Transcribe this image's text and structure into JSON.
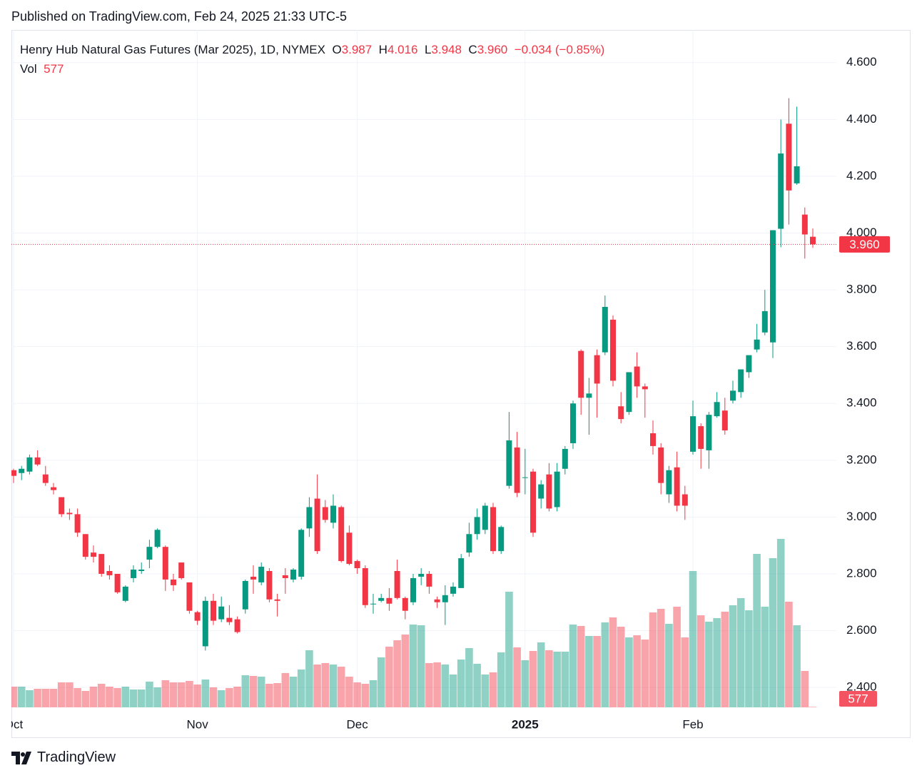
{
  "published": "Published on TradingView.com, Feb 24, 2025 21:33 UTC-5",
  "footer": {
    "brand": "TradingView"
  },
  "chart_data": {
    "type": "candlestick",
    "title": "Henry Hub Natural Gas Futures (Mar 2025), 1D, NYMEX",
    "legend": {
      "open_label": "O",
      "open": "3.987",
      "high_label": "H",
      "high": "4.016",
      "low_label": "L",
      "low": "3.948",
      "close_label": "C",
      "close": "3.960",
      "change": "−0.034 (−0.85%)",
      "volume_label": "Vol"
    },
    "categories": [
      "Oct",
      null,
      null,
      null,
      null,
      null,
      null,
      null,
      null,
      null,
      null,
      null,
      null,
      null,
      null,
      null,
      null,
      null,
      null,
      null,
      null,
      null,
      null,
      "Nov",
      null,
      null,
      null,
      null,
      null,
      null,
      null,
      null,
      null,
      null,
      null,
      null,
      null,
      null,
      null,
      null,
      null,
      null,
      null,
      "Dec",
      null,
      null,
      null,
      null,
      null,
      null,
      null,
      null,
      null,
      null,
      null,
      null,
      null,
      null,
      null,
      null,
      null,
      null,
      null,
      null,
      "2025",
      null,
      null,
      null,
      null,
      null,
      null,
      null,
      null,
      null,
      null,
      null,
      null,
      null,
      null,
      null,
      null,
      null,
      null,
      null,
      null,
      "Feb",
      null,
      null,
      null,
      null,
      null,
      null,
      null,
      null,
      null,
      null,
      null,
      null,
      null,
      null,
      null
    ],
    "open": [
      3.165,
      3.155,
      3.16,
      3.21,
      3.15,
      3.105,
      3.07,
      3.015,
      3.01,
      2.94,
      2.875,
      2.87,
      2.81,
      2.8,
      2.705,
      2.785,
      2.81,
      2.85,
      2.895,
      2.895,
      2.78,
      2.84,
      2.77,
      2.665,
      2.545,
      2.705,
      2.64,
      2.645,
      2.64,
      2.675,
      2.79,
      2.77,
      2.81,
      2.71,
      2.795,
      2.78,
      2.79,
      2.96,
      3.065,
      3.035,
      2.98,
      3.035,
      2.945,
      2.845,
      2.82,
      2.695,
      2.705,
      2.715,
      2.81,
      2.715,
      2.7,
      2.79,
      2.8,
      2.71,
      2.7,
      2.73,
      2.75,
      2.875,
      2.94,
      2.955,
      3.035,
      2.88,
      3.11,
      3.245,
      3.14,
      3.16,
      3.065,
      3.15,
      3.035,
      3.17,
      3.26,
      3.585,
      3.42,
      3.57,
      3.58,
      3.695,
      3.39,
      3.37,
      3.53,
      3.46,
      3.295,
      3.245,
      3.08,
      3.175,
      3.08,
      3.23,
      3.32,
      3.235,
      3.355,
      3.375,
      3.41,
      3.44,
      3.51,
      3.59,
      3.65,
      3.615,
      4.015,
      4.385,
      4.175,
      4.065,
      3.987
    ],
    "high": [
      3.17,
      3.18,
      3.22,
      3.235,
      3.18,
      3.12,
      3.07,
      3.03,
      3.03,
      2.94,
      2.9,
      2.87,
      2.83,
      2.8,
      2.76,
      2.83,
      2.84,
      2.92,
      2.96,
      2.9,
      2.8,
      2.84,
      2.77,
      2.67,
      2.72,
      2.73,
      2.72,
      2.69,
      2.65,
      2.78,
      2.83,
      2.84,
      2.82,
      2.73,
      2.82,
      2.82,
      2.96,
      3.07,
      3.15,
      3.06,
      3.08,
      3.04,
      2.97,
      2.85,
      2.83,
      2.73,
      2.73,
      2.75,
      2.85,
      2.72,
      2.8,
      2.82,
      2.81,
      2.72,
      2.76,
      2.77,
      2.87,
      2.98,
      3.03,
      3.05,
      3.05,
      2.97,
      3.37,
      3.3,
      3.24,
      3.17,
      3.13,
      3.19,
      3.19,
      3.25,
      3.41,
      3.59,
      3.49,
      3.59,
      3.78,
      3.71,
      3.44,
      3.51,
      3.58,
      3.47,
      3.34,
      3.26,
      3.18,
      3.23,
      3.11,
      3.41,
      3.33,
      3.37,
      3.44,
      3.42,
      3.48,
      3.52,
      3.57,
      3.68,
      3.8,
      4.01,
      4.4,
      4.475,
      4.445,
      4.09,
      4.016
    ],
    "low": [
      3.12,
      3.13,
      3.15,
      3.18,
      3.11,
      3.08,
      3.0,
      2.99,
      2.93,
      2.85,
      2.84,
      2.79,
      2.78,
      2.73,
      2.7,
      2.77,
      2.8,
      2.82,
      2.89,
      2.74,
      2.74,
      2.78,
      2.66,
      2.62,
      2.53,
      2.62,
      2.63,
      2.62,
      2.59,
      2.66,
      2.73,
      2.76,
      2.7,
      2.65,
      2.73,
      2.77,
      2.78,
      2.93,
      2.87,
      2.98,
      2.96,
      2.84,
      2.83,
      2.8,
      2.68,
      2.66,
      2.7,
      2.67,
      2.71,
      2.64,
      2.69,
      2.76,
      2.73,
      2.68,
      2.62,
      2.72,
      2.75,
      2.86,
      2.92,
      2.94,
      2.87,
      2.87,
      3.1,
      3.07,
      3.08,
      2.93,
      3.03,
      3.02,
      3.02,
      3.15,
      3.24,
      3.36,
      3.29,
      3.35,
      3.57,
      3.46,
      3.33,
      3.36,
      3.42,
      3.35,
      3.22,
      3.08,
      3.05,
      3.02,
      2.99,
      3.22,
      3.17,
      3.17,
      3.35,
      3.29,
      3.4,
      3.42,
      3.49,
      3.58,
      3.64,
      3.56,
      3.95,
      4.03,
      4.17,
      3.91,
      3.948
    ],
    "close": [
      3.145,
      3.17,
      3.21,
      3.185,
      3.12,
      3.095,
      3.01,
      3.01,
      2.945,
      2.86,
      2.86,
      2.8,
      2.795,
      2.735,
      2.755,
      2.815,
      2.815,
      2.895,
      2.955,
      2.78,
      2.76,
      2.785,
      2.67,
      2.635,
      2.705,
      2.635,
      2.685,
      2.63,
      2.595,
      2.775,
      2.78,
      2.825,
      2.71,
      2.705,
      2.785,
      2.815,
      2.955,
      3.035,
      2.88,
      2.99,
      3.04,
      2.845,
      2.835,
      2.82,
      2.69,
      2.695,
      2.715,
      2.695,
      2.715,
      2.67,
      2.785,
      2.8,
      2.755,
      2.7,
      2.725,
      2.755,
      2.855,
      2.94,
      3.0,
      3.04,
      2.88,
      2.965,
      3.27,
      3.085,
      3.14,
      2.945,
      3.115,
      3.03,
      3.16,
      3.24,
      3.4,
      3.42,
      3.435,
      3.47,
      3.74,
      3.48,
      3.345,
      3.51,
      3.46,
      3.45,
      3.25,
      3.12,
      3.165,
      3.04,
      3.04,
      3.355,
      3.24,
      3.36,
      3.405,
      3.305,
      3.445,
      3.52,
      3.57,
      3.625,
      3.725,
      4.01,
      4.28,
      4.15,
      4.235,
      3.995,
      3.96
    ],
    "volume": [
      23200,
      23200,
      19200,
      20800,
      20800,
      20800,
      28000,
      28000,
      21600,
      18400,
      23200,
      26400,
      23200,
      21600,
      23200,
      20000,
      20000,
      28800,
      22400,
      30400,
      28000,
      28000,
      29600,
      25600,
      31200,
      22400,
      19200,
      21600,
      23200,
      36000,
      35200,
      34400,
      26400,
      27200,
      38400,
      34400,
      42400,
      64000,
      48000,
      49600,
      48000,
      45600,
      34400,
      28000,
      26400,
      30400,
      56000,
      68000,
      75200,
      81600,
      92800,
      92000,
      49600,
      50400,
      48000,
      36800,
      53600,
      66400,
      48800,
      36800,
      39200,
      61600,
      129600,
      67200,
      52800,
      63200,
      72800,
      64000,
      62400,
      62400,
      92800,
      91200,
      80000,
      80000,
      95200,
      100800,
      90400,
      78400,
      80800,
      76000,
      106400,
      110400,
      93600,
      112800,
      78400,
      152800,
      103200,
      96000,
      100000,
      107200,
      114400,
      122400,
      108800,
      172000,
      112800,
      167200,
      188800,
      118400,
      92000,
      40800,
      577
    ],
    "up_color": "#089981",
    "down_color": "#f23645",
    "ylim": [
      2.33,
      4.715
    ],
    "yticks": [
      {
        "value": 2.4,
        "label": "2.400"
      },
      {
        "value": 2.6,
        "label": "2.600"
      },
      {
        "value": 2.8,
        "label": "2.800"
      },
      {
        "value": 3.0,
        "label": "3.000"
      },
      {
        "value": 3.2,
        "label": "3.200"
      },
      {
        "value": 3.4,
        "label": "3.400"
      },
      {
        "value": 3.6,
        "label": "3.600"
      },
      {
        "value": 3.8,
        "label": "3.800"
      },
      {
        "value": 4.0,
        "label": "4.000"
      },
      {
        "value": 4.2,
        "label": "4.200"
      },
      {
        "value": 4.4,
        "label": "4.400"
      },
      {
        "value": 4.6,
        "label": "4.600"
      }
    ],
    "grid": true
  }
}
